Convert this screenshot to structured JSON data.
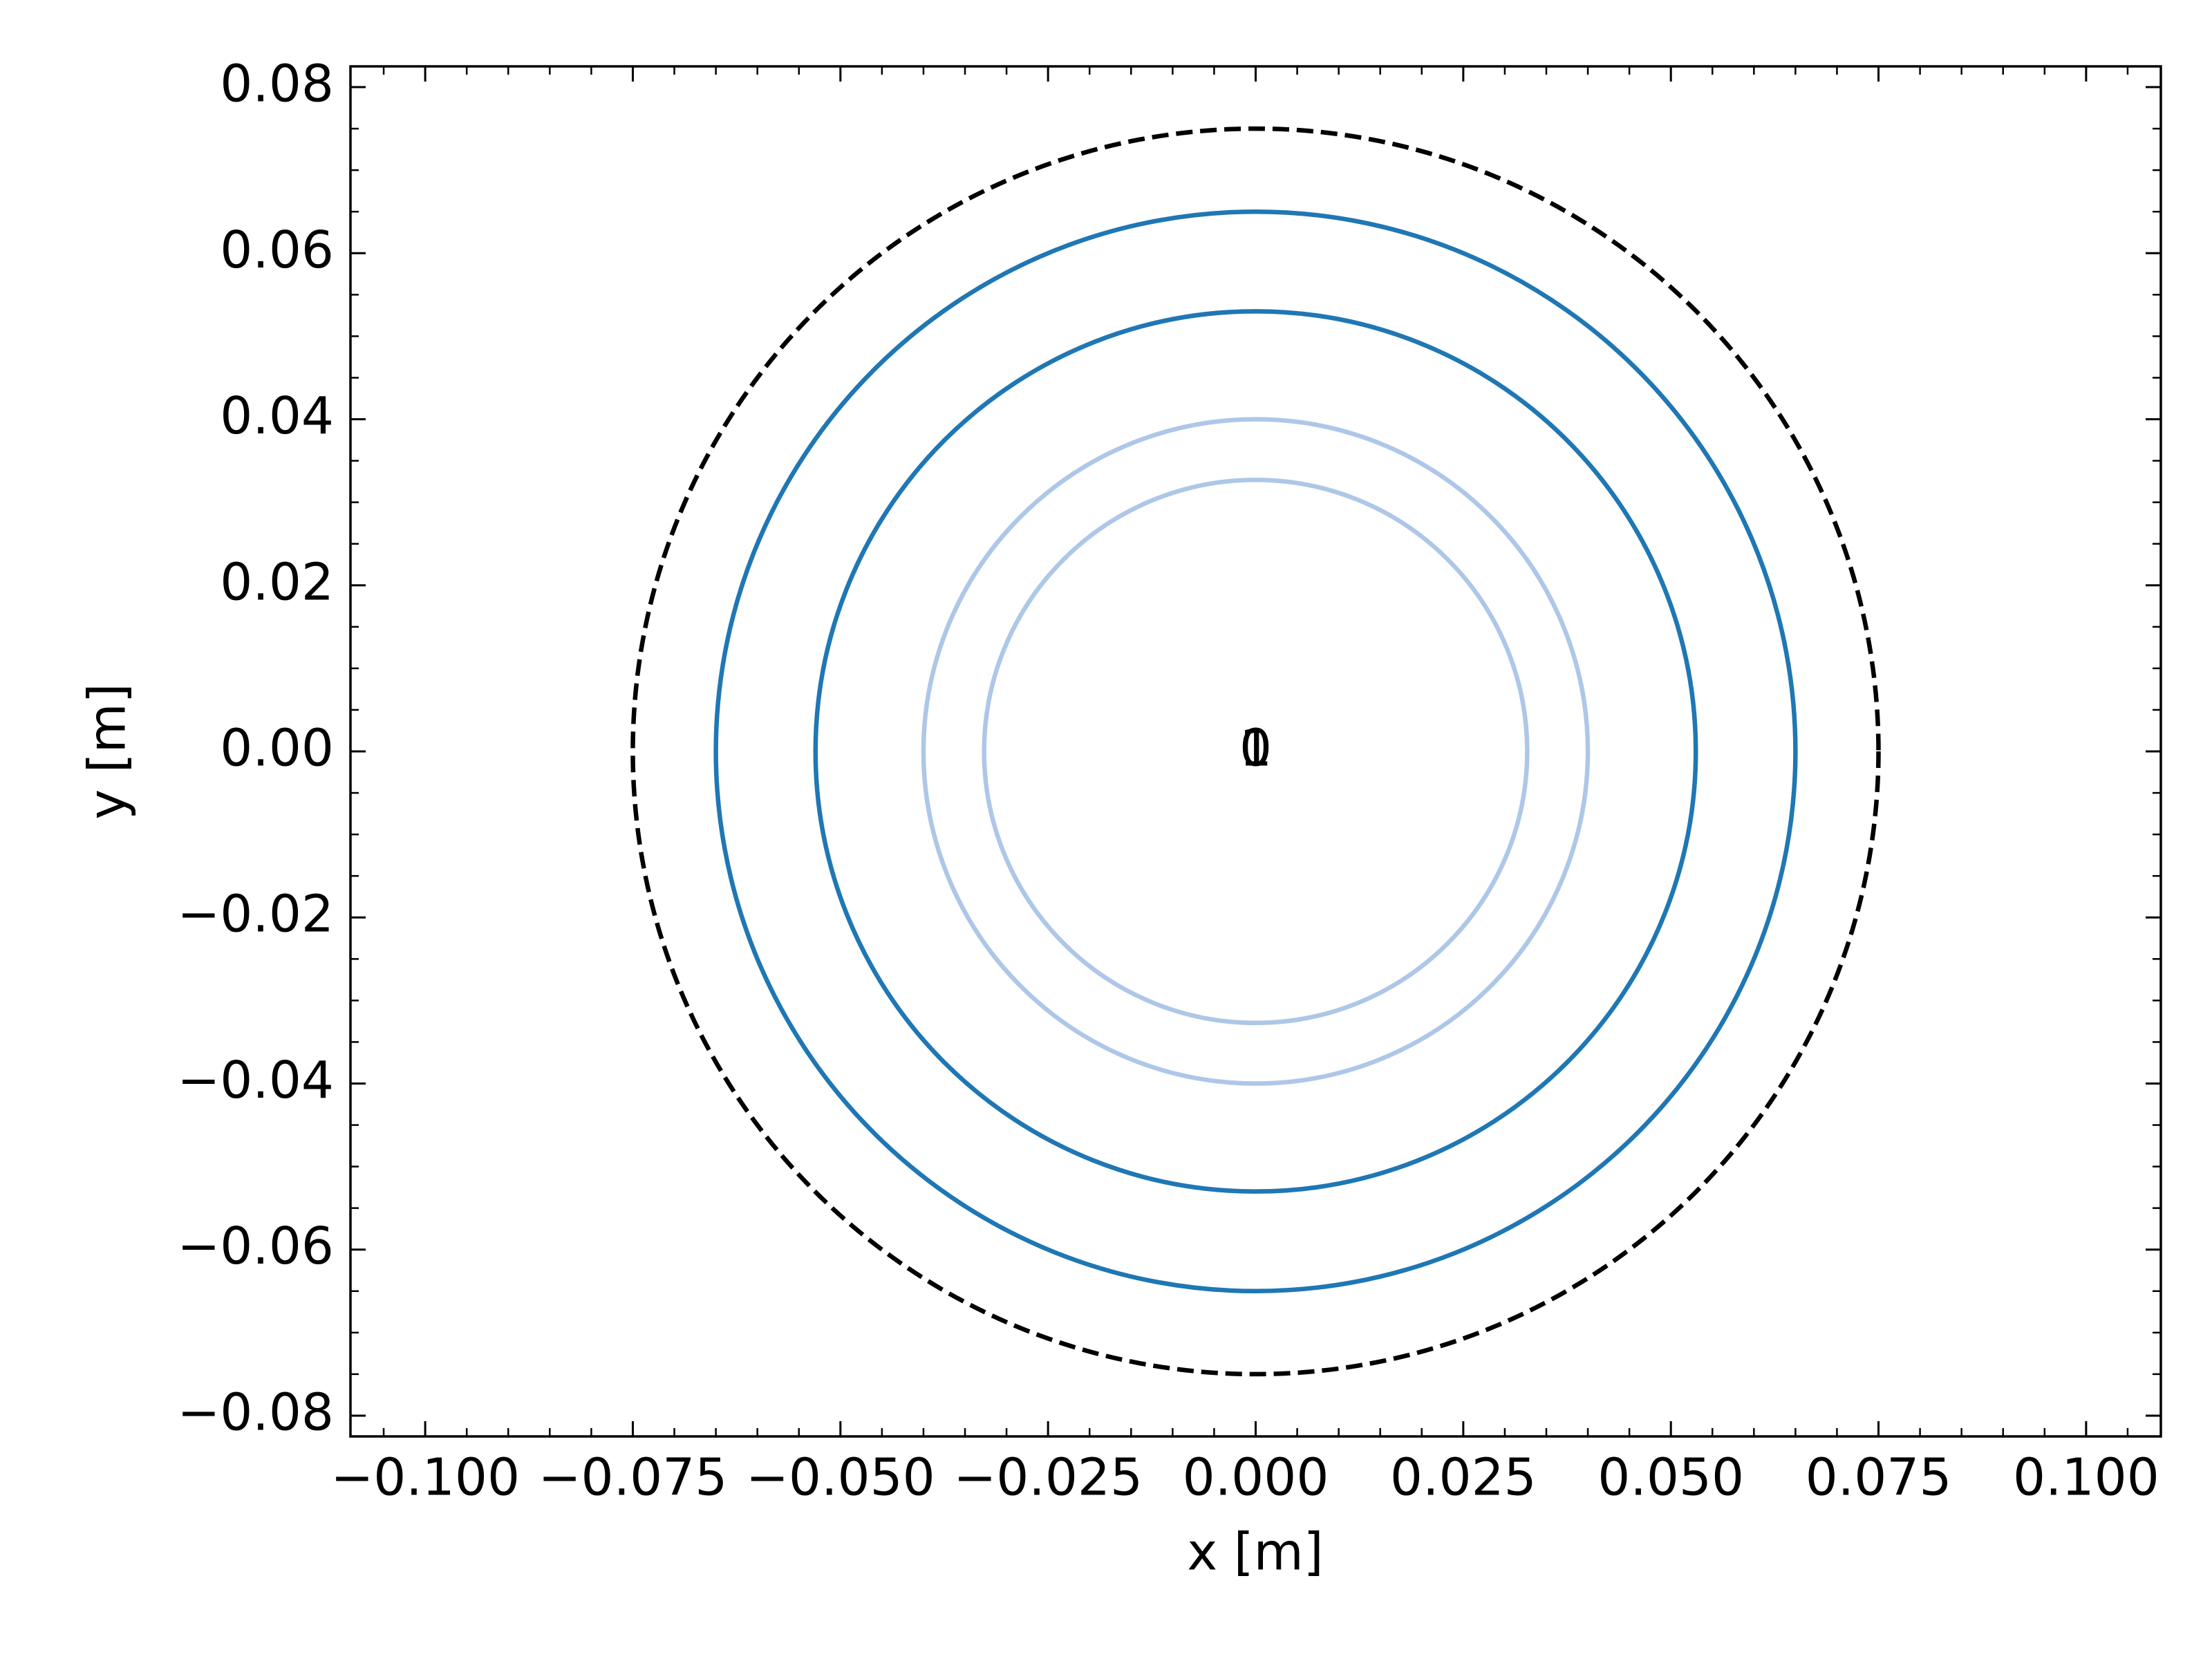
{
  "chart_data": {
    "type": "circles",
    "xlabel": "x [m]",
    "ylabel": "y [m]",
    "xlim": [
      -0.109,
      0.109
    ],
    "ylim": [
      -0.0825,
      0.0825
    ],
    "xticks": [
      {
        "value": -0.1,
        "label": "−0.100"
      },
      {
        "value": -0.075,
        "label": "−0.075"
      },
      {
        "value": -0.05,
        "label": "−0.050"
      },
      {
        "value": -0.025,
        "label": "−0.025"
      },
      {
        "value": 0,
        "label": "0.000"
      },
      {
        "value": 0.025,
        "label": "0.025"
      },
      {
        "value": 0.05,
        "label": "0.050"
      },
      {
        "value": 0.075,
        "label": "0.075"
      },
      {
        "value": 0.1,
        "label": "0.100"
      }
    ],
    "yticks": [
      {
        "value": -0.08,
        "label": "−0.08"
      },
      {
        "value": -0.06,
        "label": "−0.06"
      },
      {
        "value": -0.04,
        "label": "−0.04"
      },
      {
        "value": -0.02,
        "label": "−0.02"
      },
      {
        "value": 0,
        "label": "0.00"
      },
      0.02,
      0.04,
      0.06,
      0.08
    ],
    "minor_step": 0.005,
    "circles": [
      {
        "x": 0,
        "y": 0,
        "r": 0.075,
        "color": "#000000",
        "linestyle": "dashed"
      },
      {
        "x": 0,
        "y": 0,
        "r": 0.065,
        "color": "#1f77b4",
        "linestyle": "solid"
      },
      {
        "x": 0,
        "y": 0,
        "r": 0.053,
        "color": "#1f77b4",
        "linestyle": "solid"
      },
      {
        "x": 0,
        "y": 0,
        "r": 0.04,
        "color": "#aec7e8",
        "linestyle": "solid"
      },
      {
        "x": 0,
        "y": 0,
        "r": 0.0327,
        "color": "#aec7e8",
        "linestyle": "solid"
      }
    ],
    "annotations": [
      {
        "text": "0",
        "x": 0,
        "y": 0
      },
      {
        "text": "1",
        "x": 0,
        "y": 0
      }
    ]
  }
}
